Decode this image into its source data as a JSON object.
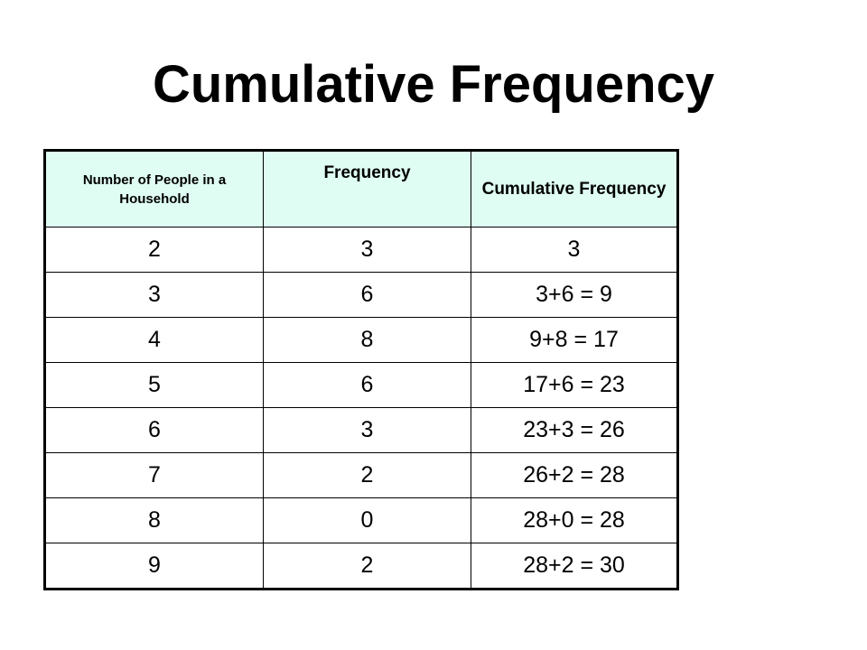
{
  "title": "Cumulative Frequency",
  "table": {
    "headers": [
      "Number of People in a Household",
      "Frequency",
      "Cumulative Frequency"
    ],
    "rows": [
      [
        "2",
        "3",
        "3"
      ],
      [
        "3",
        "6",
        "3+6 = 9"
      ],
      [
        "4",
        "8",
        "9+8 = 17"
      ],
      [
        "5",
        "6",
        "17+6 = 23"
      ],
      [
        "6",
        "3",
        "23+3 = 26"
      ],
      [
        "7",
        "2",
        "26+2 = 28"
      ],
      [
        "8",
        "0",
        "28+0 = 28"
      ],
      [
        "9",
        "2",
        "28+2 = 30"
      ]
    ]
  },
  "colors": {
    "header_background": "#dffdf3",
    "border": "#000000",
    "text": "#000000",
    "background": "#ffffff"
  }
}
